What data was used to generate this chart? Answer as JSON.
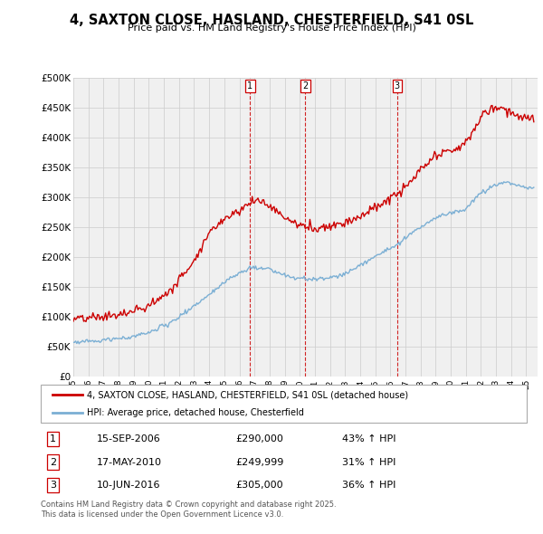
{
  "title": "4, SAXTON CLOSE, HASLAND, CHESTERFIELD, S41 0SL",
  "subtitle": "Price paid vs. HM Land Registry's House Price Index (HPI)",
  "ylabel_ticks": [
    "£0",
    "£50K",
    "£100K",
    "£150K",
    "£200K",
    "£250K",
    "£300K",
    "£350K",
    "£400K",
    "£450K",
    "£500K"
  ],
  "ylim": [
    0,
    500000
  ],
  "ytick_vals": [
    0,
    50000,
    100000,
    150000,
    200000,
    250000,
    300000,
    350000,
    400000,
    450000,
    500000
  ],
  "sale_info": [
    {
      "label": "1",
      "date": "15-SEP-2006",
      "price": "£290,000",
      "hpi": "43% ↑ HPI",
      "year": 2006.708
    },
    {
      "label": "2",
      "date": "17-MAY-2010",
      "price": "£249,999",
      "hpi": "31% ↑ HPI",
      "year": 2010.375
    },
    {
      "label": "3",
      "date": "10-JUN-2016",
      "price": "£305,000",
      "hpi": "36% ↑ HPI",
      "year": 2016.442
    }
  ],
  "legend_line1": "4, SAXTON CLOSE, HASLAND, CHESTERFIELD, S41 0SL (detached house)",
  "legend_line2": "HPI: Average price, detached house, Chesterfield",
  "footer": "Contains HM Land Registry data © Crown copyright and database right 2025.\nThis data is licensed under the Open Government Licence v3.0.",
  "line_color_red": "#cc0000",
  "line_color_blue": "#7bafd4",
  "vline_color": "#cc0000",
  "grid_color": "#cccccc",
  "background_color": "#ffffff",
  "plot_bg_color": "#f0f0f0",
  "red_keypoints": [
    [
      1995.0,
      95000
    ],
    [
      1996.0,
      97000
    ],
    [
      1997.0,
      100000
    ],
    [
      1998.5,
      105000
    ],
    [
      2000.0,
      118000
    ],
    [
      2001.5,
      145000
    ],
    [
      2003.0,
      195000
    ],
    [
      2004.0,
      240000
    ],
    [
      2005.0,
      265000
    ],
    [
      2006.0,
      278000
    ],
    [
      2006.708,
      290000
    ],
    [
      2007.3,
      296000
    ],
    [
      2008.0,
      285000
    ],
    [
      2008.8,
      270000
    ],
    [
      2009.5,
      258000
    ],
    [
      2010.375,
      250000
    ],
    [
      2011.0,
      248000
    ],
    [
      2012.0,
      252000
    ],
    [
      2013.0,
      258000
    ],
    [
      2014.0,
      268000
    ],
    [
      2015.0,
      282000
    ],
    [
      2016.0,
      298000
    ],
    [
      2016.442,
      305000
    ],
    [
      2017.0,
      315000
    ],
    [
      2018.0,
      345000
    ],
    [
      2019.0,
      368000
    ],
    [
      2020.0,
      378000
    ],
    [
      2020.8,
      385000
    ],
    [
      2021.5,
      410000
    ],
    [
      2022.0,
      435000
    ],
    [
      2022.7,
      448000
    ],
    [
      2023.5,
      450000
    ],
    [
      2024.0,
      442000
    ],
    [
      2024.5,
      435000
    ],
    [
      2025.3,
      430000
    ]
  ],
  "blue_keypoints": [
    [
      1995.0,
      57000
    ],
    [
      1996.0,
      59000
    ],
    [
      1997.0,
      61000
    ],
    [
      1998.5,
      64000
    ],
    [
      2000.0,
      73000
    ],
    [
      2001.5,
      90000
    ],
    [
      2003.0,
      118000
    ],
    [
      2004.0,
      138000
    ],
    [
      2005.0,
      158000
    ],
    [
      2006.0,
      173000
    ],
    [
      2007.0,
      182000
    ],
    [
      2008.0,
      180000
    ],
    [
      2008.8,
      172000
    ],
    [
      2009.5,
      165000
    ],
    [
      2010.375,
      163000
    ],
    [
      2011.0,
      162000
    ],
    [
      2012.0,
      165000
    ],
    [
      2013.0,
      172000
    ],
    [
      2014.0,
      185000
    ],
    [
      2015.0,
      202000
    ],
    [
      2016.442,
      220000
    ],
    [
      2017.0,
      232000
    ],
    [
      2018.0,
      250000
    ],
    [
      2019.0,
      265000
    ],
    [
      2020.0,
      272000
    ],
    [
      2021.0,
      280000
    ],
    [
      2022.0,
      308000
    ],
    [
      2023.0,
      322000
    ],
    [
      2023.8,
      325000
    ],
    [
      2024.5,
      318000
    ],
    [
      2025.3,
      315000
    ]
  ],
  "noise_red": 4000,
  "noise_blue": 1800
}
